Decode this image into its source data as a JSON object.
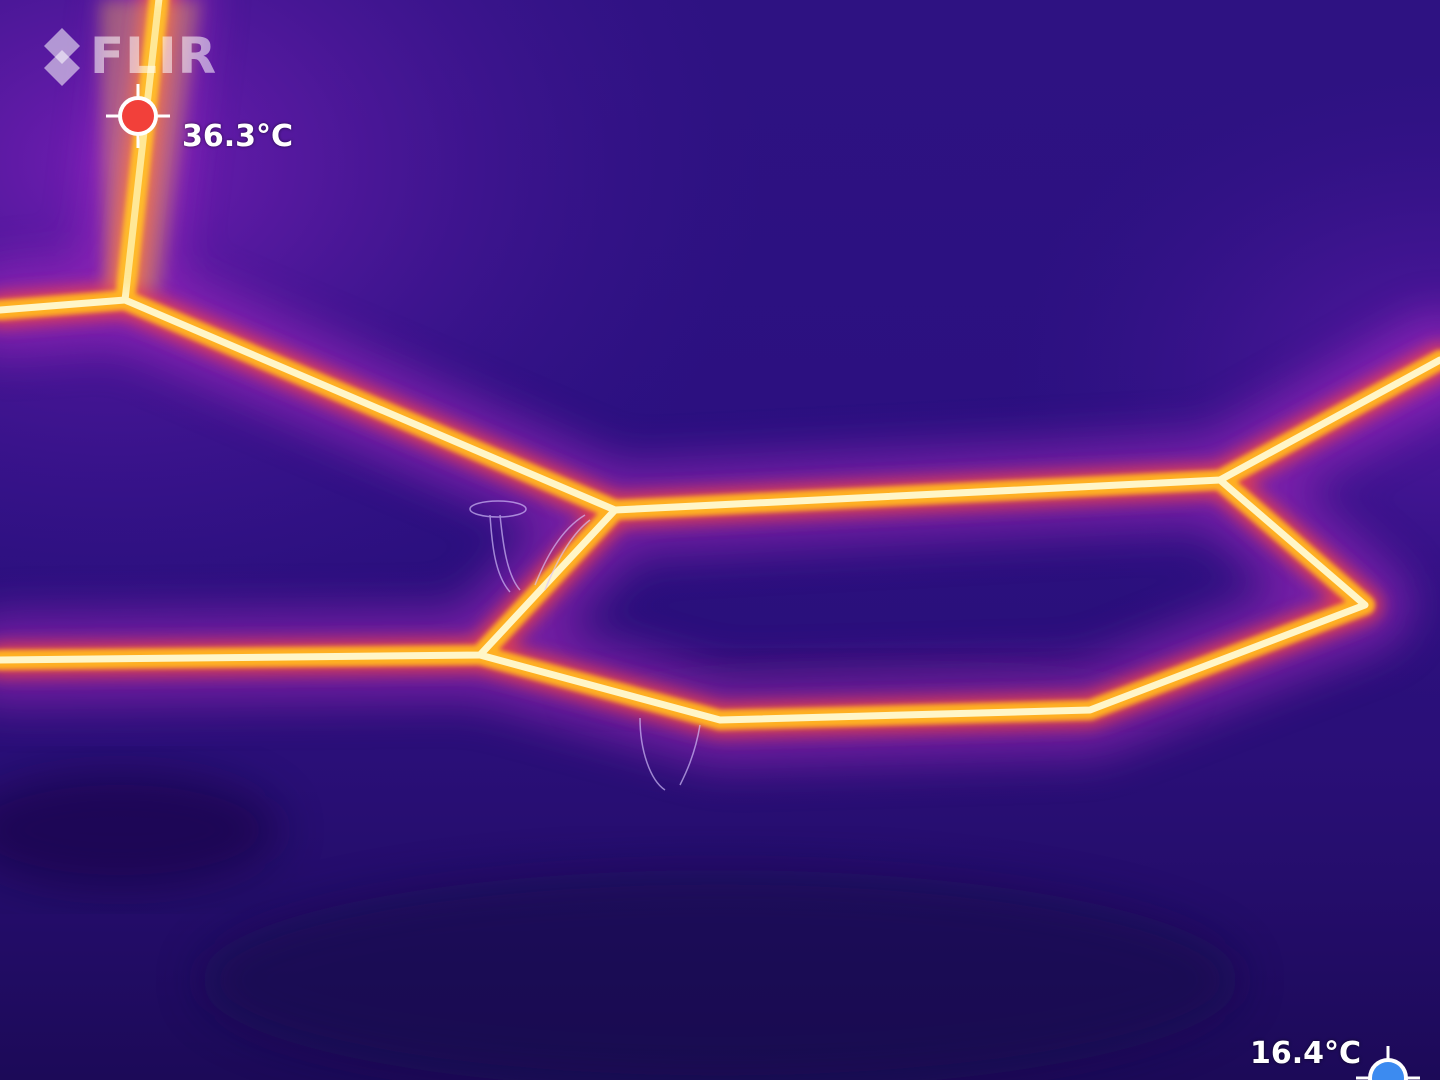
{
  "brand": {
    "logo_text": "FLIR",
    "logo_color": "#ffffff"
  },
  "spot_markers": {
    "max": {
      "temperature": "36.3°C",
      "marker_color": "#f2403a"
    },
    "min": {
      "temperature": "16.4°C",
      "marker_color": "#3c8bf0"
    }
  },
  "palette": {
    "background": "#2a0f7a",
    "hot_core": "#fffbe6",
    "hot_mid": "#ffd93a",
    "hot_edge": "#ff7a1a",
    "glow": "#b02cc4"
  }
}
